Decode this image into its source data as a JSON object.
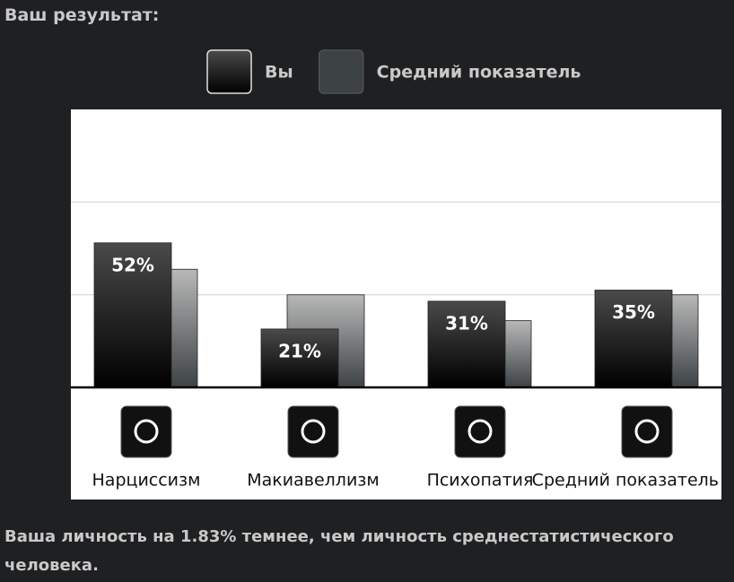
{
  "chart_data": {
    "type": "bar",
    "title": "Ваш результат:",
    "categories": [
      "Нарциссизм",
      "Макиавеллизм",
      "Психопатия",
      "Средний показатель"
    ],
    "series": [
      {
        "name": "Вы",
        "color": "#000000",
        "values": [
          52,
          21,
          31,
          35
        ],
        "value_labels": [
          "52%",
          "21%",
          "31%",
          "35%"
        ]
      },
      {
        "name": "Средний показатель",
        "color": "#3d4245",
        "values": [
          42.5,
          33.3,
          24,
          33.3
        ]
      }
    ],
    "ylim": [
      0,
      100
    ],
    "yticks": [
      33.3,
      66.7
    ],
    "grid": true
  },
  "summary": "Ваша личность на 1.83% темнее, чем личность среднестатистического человека."
}
